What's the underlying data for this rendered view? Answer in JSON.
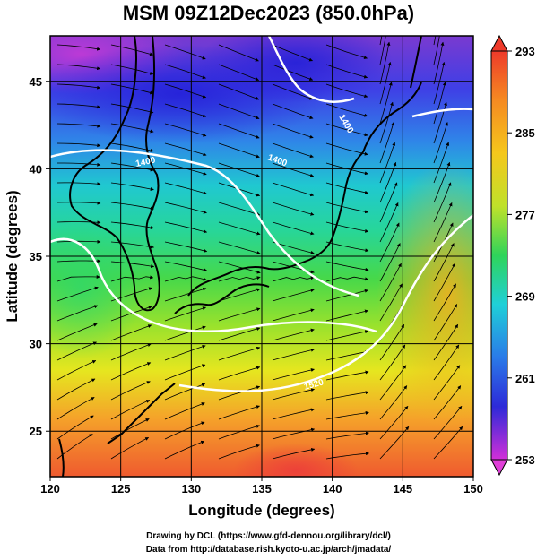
{
  "title": "MSM 09Z12Dec2023 (850.0hPa)",
  "map": {
    "x_axis": {
      "label": "Longitude (degrees)",
      "ticks": [
        "120",
        "125",
        "130",
        "135",
        "140",
        "145",
        "150"
      ],
      "range": [
        120,
        150
      ]
    },
    "y_axis": {
      "label": "Latitude  (degrees)",
      "ticks": [
        "25",
        "30",
        "35",
        "40",
        "45"
      ],
      "range": [
        22.4,
        47.6
      ]
    },
    "colorbar": {
      "ticks": [
        "293",
        "285",
        "277",
        "269",
        "261",
        "253"
      ],
      "range": [
        253,
        293
      ]
    },
    "contour_labels": [
      "1400",
      "1400",
      "1400",
      "1520"
    ],
    "gridlines": true,
    "colors": {
      "coast": "#000000",
      "contour": "#ffffff",
      "streamline": "#000000"
    }
  },
  "credits": {
    "line1": "Drawing by DCL (https://www.gfd-dennou.org/library/dcl/)",
    "line2": "Data from http://database.rish.kyoto-u.ac.jp/arch/jmadata/"
  }
}
